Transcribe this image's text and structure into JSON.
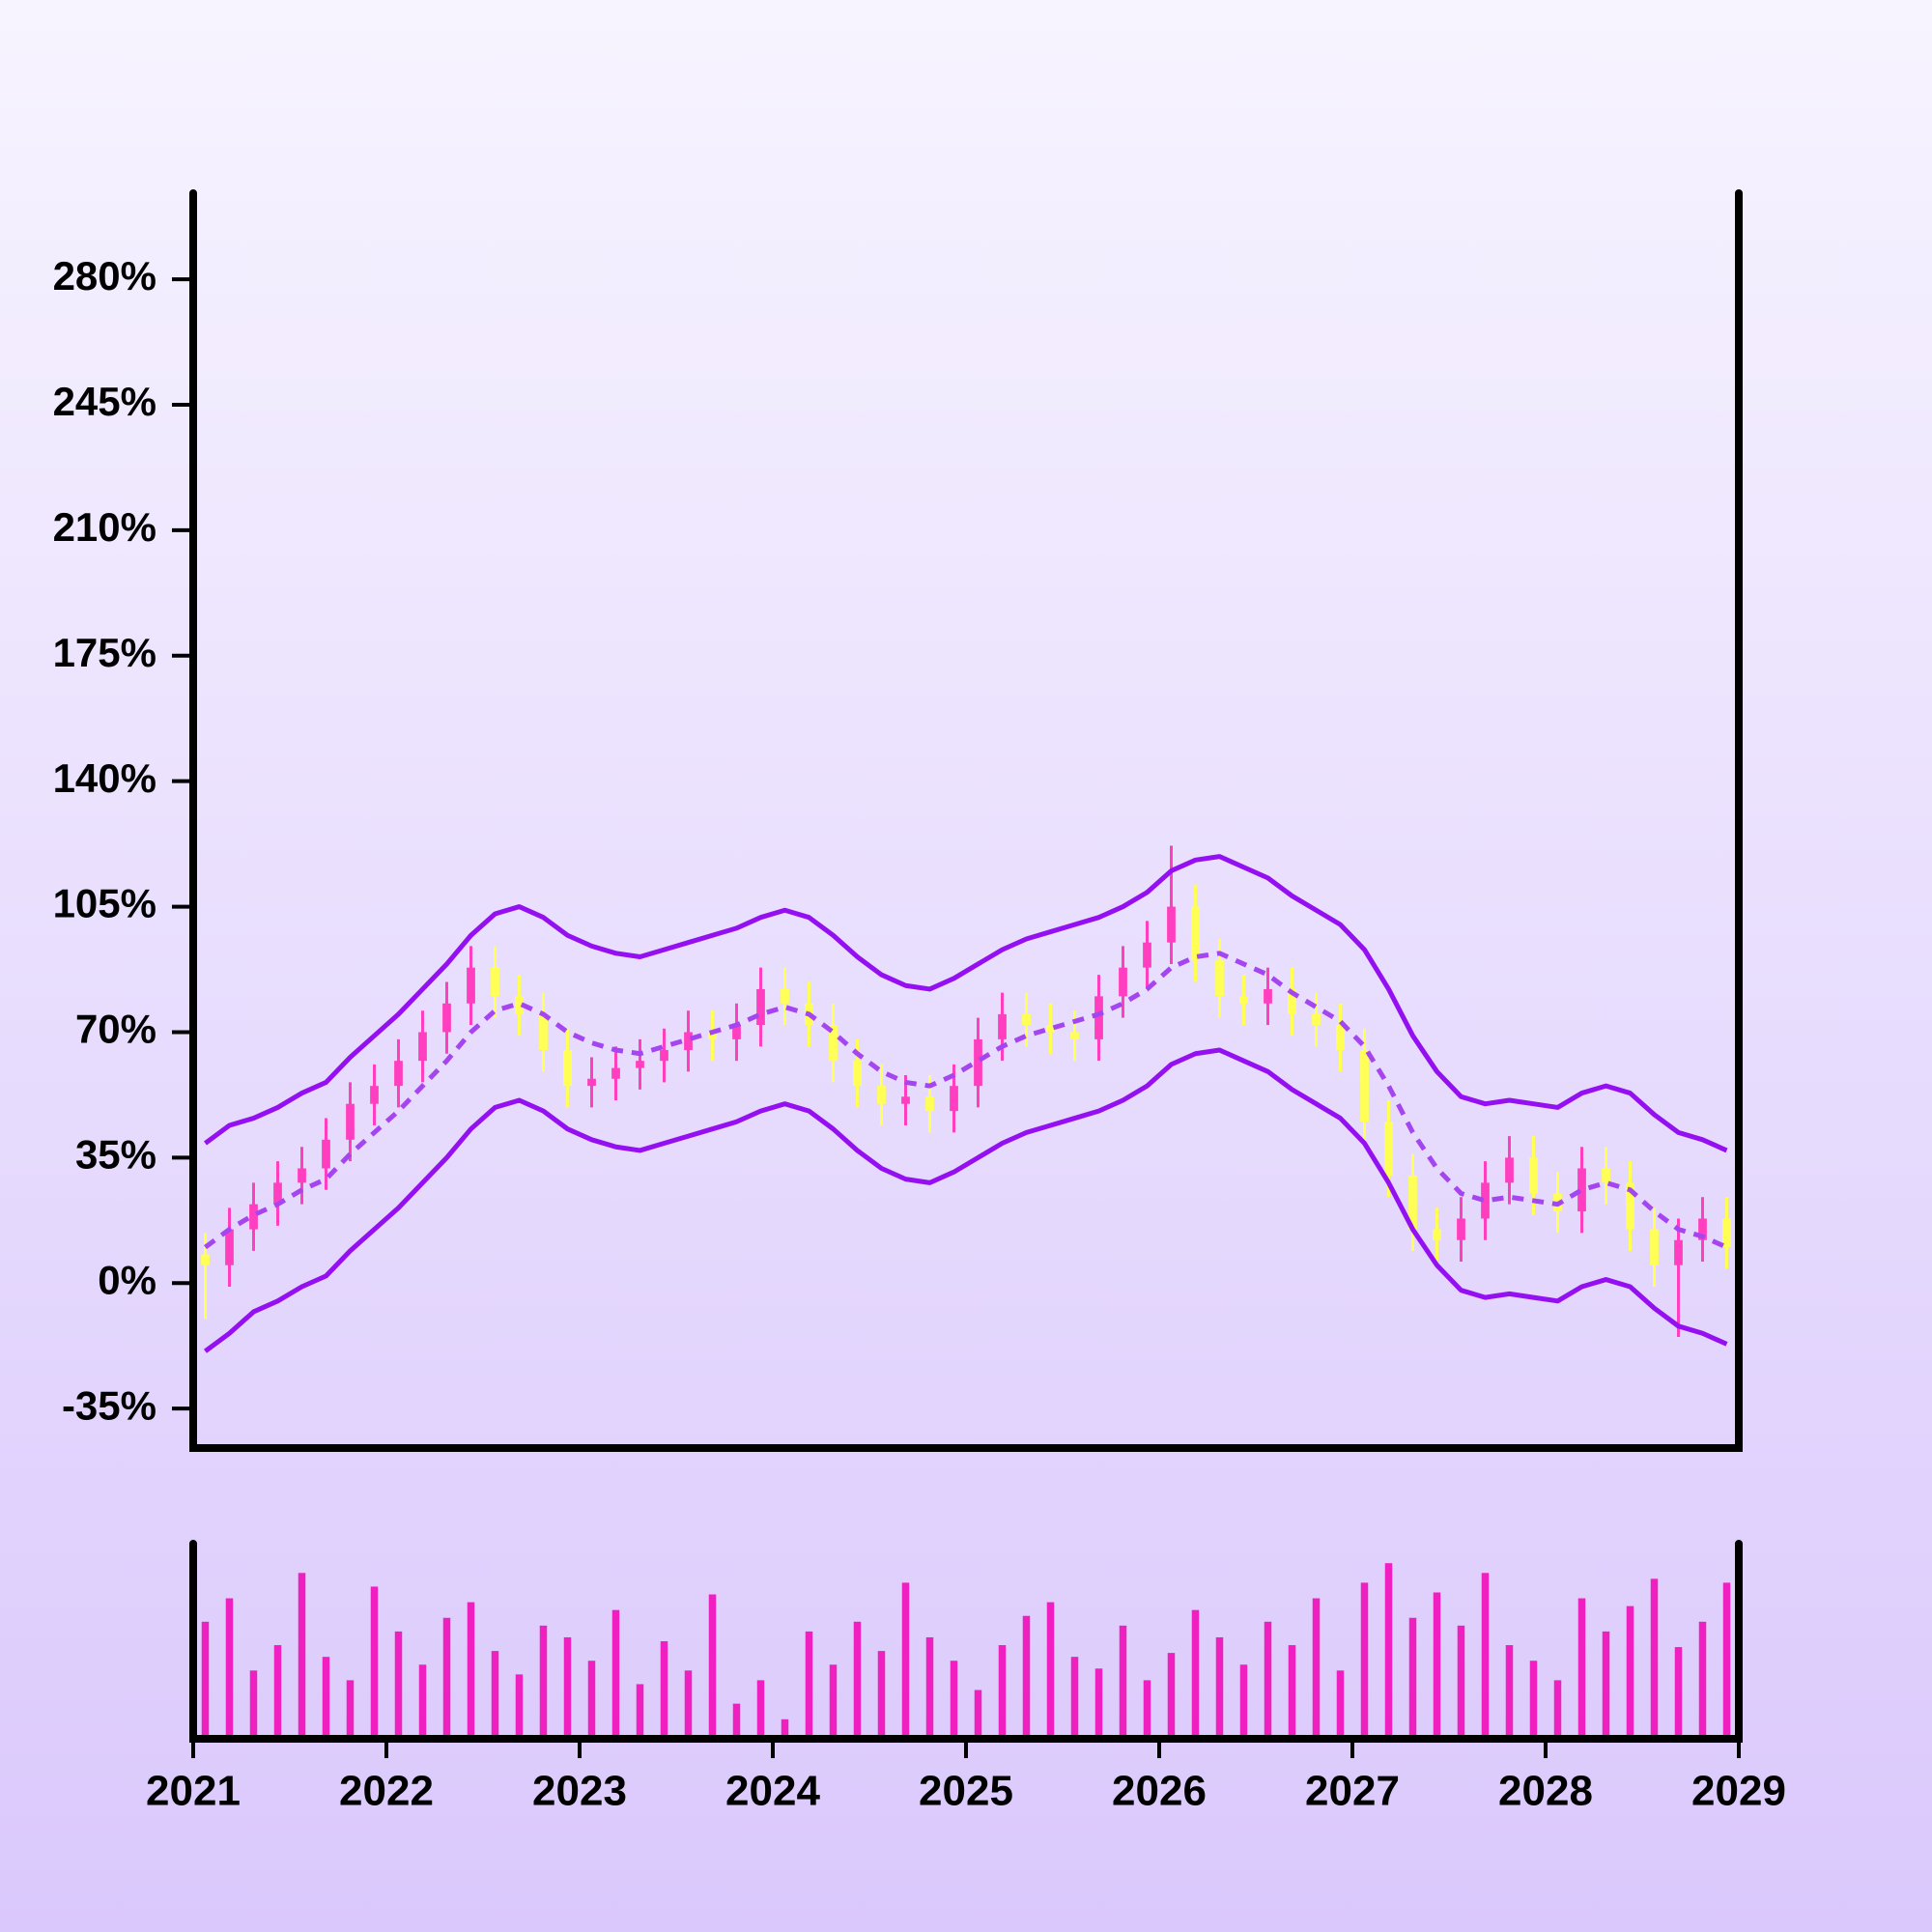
{
  "chart_data": [
    {
      "type": "candlestick",
      "x": [
        2021.0625,
        2021.1875,
        2021.3125,
        2021.4375,
        2021.5625,
        2021.6875,
        2021.8125,
        2021.9375,
        2022.0625,
        2022.1875,
        2022.3125,
        2022.4375,
        2022.5625,
        2022.6875,
        2022.8125,
        2022.9375,
        2023.0625,
        2023.1875,
        2023.3125,
        2023.4375,
        2023.5625,
        2023.6875,
        2023.8125,
        2023.9375,
        2024.0625,
        2024.1875,
        2024.3125,
        2024.4375,
        2024.5625,
        2024.6875,
        2024.8125,
        2024.9375,
        2025.0625,
        2025.1875,
        2025.3125,
        2025.4375,
        2025.5625,
        2025.6875,
        2025.8125,
        2025.9375,
        2026.0625,
        2026.1875,
        2026.3125,
        2026.4375,
        2026.5625,
        2026.6875,
        2026.8125,
        2026.9375,
        2027.0625,
        2027.1875,
        2027.3125,
        2027.4375,
        2027.5625,
        2027.6875,
        2027.8125,
        2027.9375,
        2028.0625,
        2028.1875,
        2028.3125,
        2028.4375,
        2028.5625,
        2028.6875,
        2028.8125,
        2028.9375
      ],
      "open": [
        8,
        5,
        15,
        22,
        28,
        32,
        40,
        50,
        55,
        62,
        70,
        78,
        88,
        80,
        75,
        65,
        55,
        57,
        60,
        62,
        65,
        70,
        68,
        72,
        82,
        78,
        72,
        62,
        55,
        50,
        52,
        48,
        55,
        68,
        75,
        72,
        70,
        68,
        80,
        88,
        95,
        105,
        90,
        80,
        78,
        82,
        75,
        72,
        65,
        45,
        30,
        15,
        12,
        18,
        28,
        35,
        25,
        20,
        32,
        28,
        15,
        5,
        12,
        18
      ],
      "high": [
        14,
        21,
        28,
        34,
        38,
        46,
        56,
        61,
        68,
        76,
        84,
        94,
        94,
        86,
        81,
        71,
        63,
        66,
        68,
        71,
        76,
        76,
        78,
        88,
        88,
        84,
        78,
        68,
        61,
        58,
        58,
        61,
        74,
        81,
        81,
        78,
        76,
        86,
        94,
        101,
        122,
        111,
        96,
        86,
        88,
        88,
        81,
        78,
        71,
        51,
        36,
        21,
        24,
        34,
        41,
        41,
        31,
        38,
        38,
        34,
        21,
        18,
        24,
        24
      ],
      "low": [
        -10,
        -1,
        9,
        16,
        22,
        26,
        34,
        44,
        49,
        56,
        64,
        72,
        74,
        69,
        59,
        49,
        49,
        51,
        54,
        56,
        59,
        62,
        62,
        66,
        72,
        66,
        56,
        49,
        44,
        44,
        42,
        42,
        49,
        62,
        66,
        64,
        62,
        62,
        74,
        82,
        89,
        84,
        74,
        72,
        72,
        69,
        66,
        59,
        39,
        24,
        9,
        6,
        6,
        12,
        22,
        19,
        14,
        14,
        22,
        9,
        -1,
        -15,
        6,
        4
      ],
      "close": [
        5,
        15,
        22,
        28,
        32,
        40,
        50,
        55,
        62,
        70,
        78,
        88,
        80,
        75,
        65,
        55,
        57,
        60,
        62,
        65,
        70,
        68,
        72,
        82,
        78,
        72,
        62,
        55,
        50,
        52,
        48,
        55,
        68,
        75,
        72,
        70,
        68,
        80,
        88,
        95,
        105,
        90,
        80,
        78,
        82,
        75,
        72,
        65,
        45,
        30,
        15,
        12,
        18,
        28,
        35,
        25,
        20,
        32,
        28,
        15,
        5,
        12,
        18,
        10
      ],
      "up_color": "#ff3fbf",
      "down_color": "#ffff55",
      "upper_band": [
        39,
        44,
        46,
        49,
        53,
        56,
        63,
        69,
        75,
        82,
        89,
        97,
        103,
        105,
        102,
        97,
        94,
        92,
        91,
        93,
        95,
        97,
        99,
        102,
        104,
        102,
        97,
        91,
        86,
        83,
        82,
        85,
        89,
        93,
        96,
        98,
        100,
        102,
        105,
        109,
        115,
        118,
        119,
        116,
        113,
        108,
        104,
        100,
        93,
        82,
        69,
        59,
        52,
        50,
        51,
        50,
        49,
        53,
        55,
        53,
        47,
        42,
        40,
        37
      ],
      "middle_band": [
        10,
        15,
        19,
        22,
        26,
        29,
        36,
        42,
        48,
        55,
        62,
        70,
        76,
        78,
        75,
        70,
        67,
        65,
        64,
        66,
        68,
        70,
        72,
        75,
        77,
        75,
        70,
        64,
        59,
        56,
        55,
        58,
        62,
        66,
        69,
        71,
        73,
        75,
        78,
        82,
        88,
        91,
        92,
        89,
        86,
        81,
        77,
        73,
        66,
        55,
        42,
        32,
        25,
        23,
        24,
        23,
        22,
        26,
        28,
        26,
        20,
        15,
        13,
        10
      ],
      "lower_band": [
        -19,
        -14,
        -8,
        -5,
        -1,
        2,
        9,
        15,
        21,
        28,
        35,
        43,
        49,
        51,
        48,
        43,
        40,
        38,
        37,
        39,
        41,
        43,
        45,
        48,
        50,
        48,
        43,
        37,
        32,
        29,
        28,
        31,
        35,
        39,
        42,
        44,
        46,
        48,
        51,
        55,
        61,
        64,
        65,
        62,
        59,
        54,
        50,
        46,
        39,
        28,
        15,
        5,
        -2,
        -4,
        -3,
        -4,
        -5,
        -1,
        1,
        -1,
        -7,
        -12,
        -14,
        -17
      ],
      "band_color": "#9410f0",
      "middle_color": "#a545f0",
      "xlim": [
        2021,
        2029
      ],
      "ylim": [
        -46,
        304
      ],
      "yticks": [
        {
          "value": -35,
          "label": "-35%"
        },
        {
          "value": 0,
          "label": "0%"
        },
        {
          "value": 35,
          "label": "35%"
        },
        {
          "value": 70,
          "label": "70%"
        },
        {
          "value": 105,
          "label": "105%"
        },
        {
          "value": 140,
          "label": "140%"
        },
        {
          "value": 175,
          "label": "175%"
        },
        {
          "value": 210,
          "label": "210%"
        },
        {
          "value": 245,
          "label": "245%"
        },
        {
          "value": 280,
          "label": "280%"
        }
      ]
    },
    {
      "type": "bar",
      "x": [
        2021.0625,
        2021.1875,
        2021.3125,
        2021.4375,
        2021.5625,
        2021.6875,
        2021.8125,
        2021.9375,
        2022.0625,
        2022.1875,
        2022.3125,
        2022.4375,
        2022.5625,
        2022.6875,
        2022.8125,
        2022.9375,
        2023.0625,
        2023.1875,
        2023.3125,
        2023.4375,
        2023.5625,
        2023.6875,
        2023.8125,
        2023.9375,
        2024.0625,
        2024.1875,
        2024.3125,
        2024.4375,
        2024.5625,
        2024.6875,
        2024.8125,
        2024.9375,
        2025.0625,
        2025.1875,
        2025.3125,
        2025.4375,
        2025.5625,
        2025.6875,
        2025.8125,
        2025.9375,
        2026.0625,
        2026.1875,
        2026.3125,
        2026.4375,
        2026.5625,
        2026.6875,
        2026.8125,
        2026.9375,
        2027.0625,
        2027.1875,
        2027.3125,
        2027.4375,
        2027.5625,
        2027.6875,
        2027.8125,
        2027.9375,
        2028.0625,
        2028.1875,
        2028.3125,
        2028.4375,
        2028.5625,
        2028.6875,
        2028.8125,
        2028.9375
      ],
      "values": [
        60,
        72,
        35,
        48,
        85,
        42,
        30,
        78,
        55,
        38,
        62,
        70,
        45,
        33,
        58,
        52,
        40,
        66,
        28,
        50,
        35,
        74,
        18,
        30,
        10,
        55,
        38,
        60,
        45,
        80,
        52,
        40,
        25,
        48,
        63,
        70,
        42,
        36,
        58,
        30,
        44,
        66,
        52,
        38,
        60,
        48,
        72,
        35,
        80,
        90,
        62,
        75,
        58,
        85,
        48,
        40,
        30,
        72,
        55,
        68,
        82,
        47,
        60,
        80
      ],
      "color": "#f020c0",
      "xlim": [
        2021,
        2029
      ],
      "ylim": [
        0,
        100
      ],
      "xticks": [
        2021,
        2022,
        2023,
        2024,
        2025,
        2026,
        2027,
        2028,
        2029
      ]
    }
  ]
}
